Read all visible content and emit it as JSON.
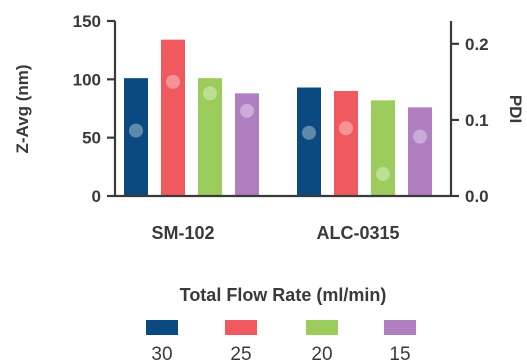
{
  "chart_data": {
    "type": "bar",
    "categories": [
      "SM-102",
      "ALC-0315"
    ],
    "ylabel": "Z-Avg (nm)",
    "y2label": "PDI",
    "ylim": [
      0,
      150
    ],
    "y2lim": [
      0,
      0.23
    ],
    "yticks": [
      "0",
      "50",
      "100",
      "150"
    ],
    "y2ticks": [
      "0.0",
      "0.1",
      "0.2"
    ],
    "legend_title": "Total Flow Rate (ml/min)",
    "legend_position": "bottom",
    "grid": false,
    "series": [
      {
        "name": "30",
        "color": "#0a4a80",
        "values": [
          101,
          93
        ],
        "pdi": [
          0.086,
          0.083
        ]
      },
      {
        "name": "25",
        "color": "#f05a5e",
        "values": [
          134,
          90
        ],
        "pdi": [
          0.15,
          0.089
        ]
      },
      {
        "name": "20",
        "color": "#9ccc5c",
        "values": [
          101,
          82
        ],
        "pdi": [
          0.135,
          0.029
        ]
      },
      {
        "name": "15",
        "color": "#b07fc2",
        "values": [
          88,
          76
        ],
        "pdi": [
          0.112,
          0.078
        ]
      }
    ]
  }
}
